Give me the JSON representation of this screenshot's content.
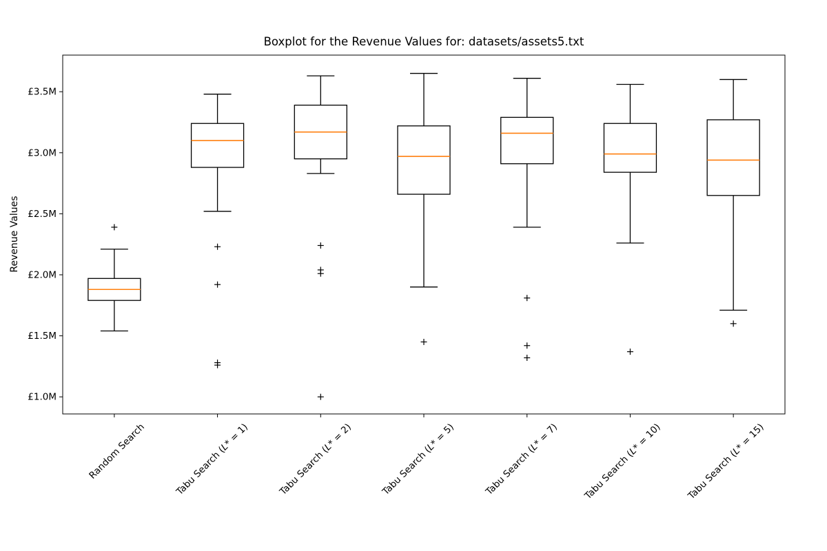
{
  "chart_data": {
    "type": "boxplot",
    "title": "Boxplot for the Revenue Values for: datasets/assets5.txt",
    "ylabel": "Revenue Values",
    "unit": "GBP millions",
    "grid": false,
    "box_color": "#000000",
    "median_color": "#ff7f0e",
    "flier_marker": "+",
    "ylim": [
      0.86,
      3.8
    ],
    "y_ticks": [
      {
        "value": 1.0,
        "label": "£1.0M"
      },
      {
        "value": 1.5,
        "label": "£1.5M"
      },
      {
        "value": 2.0,
        "label": "£2.0M"
      },
      {
        "value": 2.5,
        "label": "£2.5M"
      },
      {
        "value": 3.0,
        "label": "£3.0M"
      },
      {
        "value": 3.5,
        "label": "£3.5M"
      }
    ],
    "categories": [
      "Random Search",
      "Tabu Search (L* = 1)",
      "Tabu Search (L* = 2)",
      "Tabu Search (L* = 5)",
      "Tabu Search (L* = 7)",
      "Tabu Search (L* = 10)",
      "Tabu Search (L* = 15)"
    ],
    "series": [
      {
        "label": "Random Search",
        "whisker_low": 1.54,
        "q1": 1.79,
        "median": 1.88,
        "q3": 1.97,
        "whisker_high": 2.21,
        "outliers": [
          2.39
        ]
      },
      {
        "label": "Tabu Search (L* = 1)",
        "whisker_low": 2.52,
        "q1": 2.88,
        "median": 3.1,
        "q3": 3.24,
        "whisker_high": 3.48,
        "outliers": [
          2.23,
          1.92,
          1.28,
          1.26
        ]
      },
      {
        "label": "Tabu Search (L* = 2)",
        "whisker_low": 2.83,
        "q1": 2.95,
        "median": 3.17,
        "q3": 3.39,
        "whisker_high": 3.63,
        "outliers": [
          2.24,
          2.04,
          2.01,
          1.0
        ]
      },
      {
        "label": "Tabu Search (L* = 5)",
        "whisker_low": 1.9,
        "q1": 2.66,
        "median": 2.97,
        "q3": 3.22,
        "whisker_high": 3.65,
        "outliers": [
          1.45
        ]
      },
      {
        "label": "Tabu Search (L* = 7)",
        "whisker_low": 2.39,
        "q1": 2.91,
        "median": 3.16,
        "q3": 3.29,
        "whisker_high": 3.61,
        "outliers": [
          1.81,
          1.42,
          1.32
        ]
      },
      {
        "label": "Tabu Search (L* = 10)",
        "whisker_low": 2.26,
        "q1": 2.84,
        "median": 2.99,
        "q3": 3.24,
        "whisker_high": 3.56,
        "outliers": [
          1.37
        ]
      },
      {
        "label": "Tabu Search (L* = 15)",
        "whisker_low": 1.71,
        "q1": 2.65,
        "median": 2.94,
        "q3": 3.27,
        "whisker_high": 3.6,
        "outliers": [
          1.6
        ]
      }
    ]
  }
}
